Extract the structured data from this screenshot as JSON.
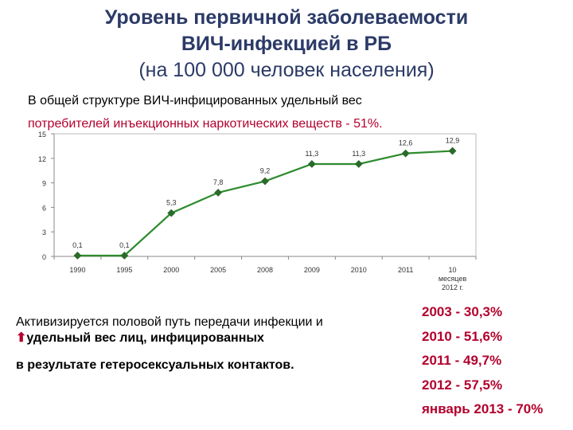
{
  "title": {
    "line1": "Уровень первичной заболеваемости",
    "line2": "ВИЧ-инфекцией в РБ",
    "line3": "(на 100 000 человек населения)"
  },
  "note": {
    "line1": "В общей структуре ВИЧ-инфицированных удельный вес",
    "line2": "потребителей инъекционных наркотических веществ - 51%."
  },
  "chart_data": {
    "type": "line",
    "categories": [
      "1990",
      "1995",
      "2000",
      "2005",
      "2008",
      "2009",
      "2010",
      "2011",
      "10 месяцев 2012 г."
    ],
    "category_lines": [
      [
        "1990"
      ],
      [
        "1995"
      ],
      [
        "2000"
      ],
      [
        "2005"
      ],
      [
        "2008"
      ],
      [
        "2009"
      ],
      [
        "2010"
      ],
      [
        "2011"
      ],
      [
        "10",
        "месяцев",
        "2012 г."
      ]
    ],
    "values": [
      0.1,
      0.1,
      5.3,
      7.8,
      9.2,
      11.3,
      11.3,
      12.6,
      12.9
    ],
    "data_labels": [
      "0,1",
      "0,1",
      "5,3",
      "7,8",
      "9,2",
      "11,3",
      "11,3",
      "12,6",
      "12,9"
    ],
    "yticks": [
      "0",
      "3",
      "6",
      "9",
      "12",
      "15"
    ],
    "ylim": [
      0,
      15
    ],
    "grid": false,
    "color": "#2e8b2e",
    "title": "",
    "xlabel": "",
    "ylabel": ""
  },
  "bottom": {
    "line1": "Активизируется половой путь передачи инфекции и",
    "arrow_icon": "up-arrow-icon",
    "arrow": "⬆",
    "line2": "удельный вес лиц, инфицированных",
    "line3": "в результате гетеросексуальных контактов."
  },
  "stats": [
    "2003 - 30,3%",
    "2010 - 51,6%",
    "2011 - 49,7%",
    "2012 - 57,5%",
    "январь 2013 - 70%"
  ],
  "colors": {
    "title": "#2b3a67",
    "accent": "#b3002d",
    "line": "#2e8b2e"
  }
}
